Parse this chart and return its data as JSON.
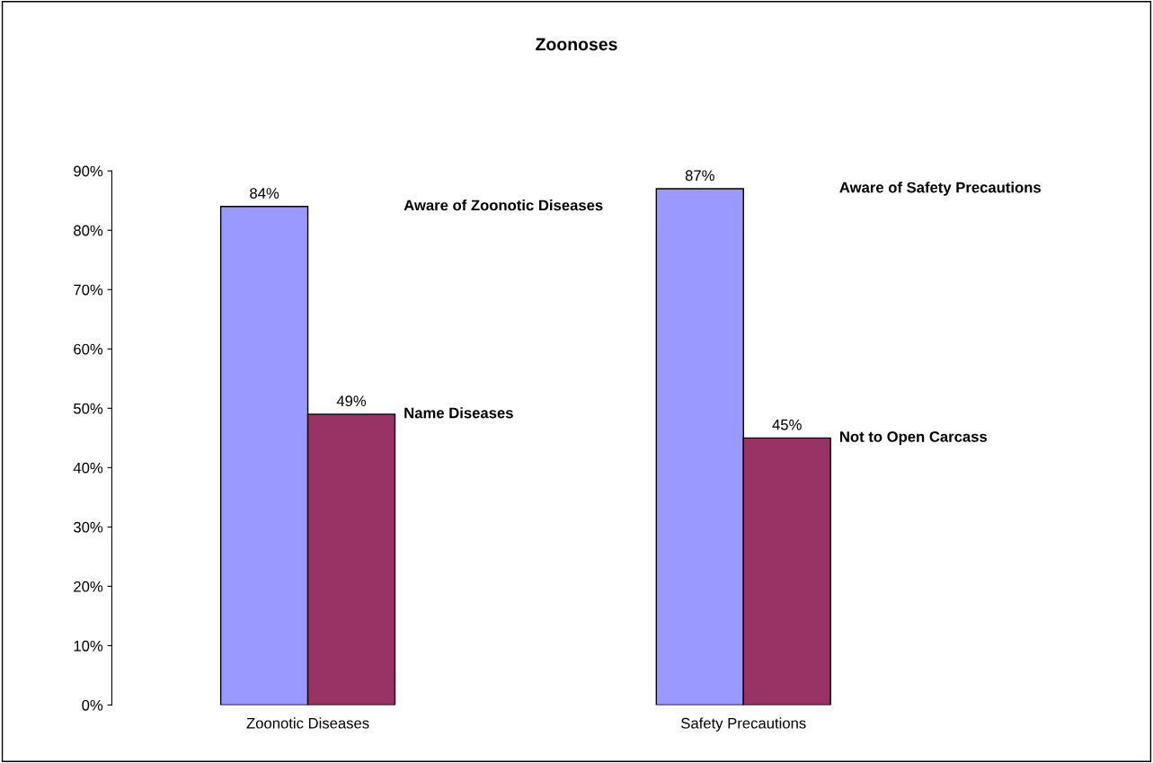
{
  "chart_data": {
    "type": "bar",
    "title": "Zoonoses",
    "categories": [
      "Zoonotic Diseases",
      "Safety Precautions"
    ],
    "series": [
      {
        "color": "#9999ff",
        "values": [
          84,
          87
        ],
        "value_labels": [
          "84%",
          "87%"
        ]
      },
      {
        "color": "#993366",
        "values": [
          49,
          45
        ],
        "value_labels": [
          "49%",
          "45%"
        ]
      }
    ],
    "ylim": [
      0,
      90
    ],
    "yticks": [
      {
        "value": 0,
        "label": "0%"
      },
      {
        "value": 10,
        "label": "10%"
      },
      {
        "value": 20,
        "label": "20%"
      },
      {
        "value": 30,
        "label": "30%"
      },
      {
        "value": 40,
        "label": "40%"
      },
      {
        "value": 50,
        "label": "50%"
      },
      {
        "value": 60,
        "label": "60%"
      },
      {
        "value": 70,
        "label": "70%"
      },
      {
        "value": 80,
        "label": "80%"
      },
      {
        "value": 90,
        "label": "90%"
      }
    ],
    "grid": false,
    "legend": false,
    "annotations": [
      "Aware of Zoonotic Diseases",
      "Name Diseases",
      "Aware of Safety Precautions",
      "Not to Open Carcass"
    ]
  }
}
